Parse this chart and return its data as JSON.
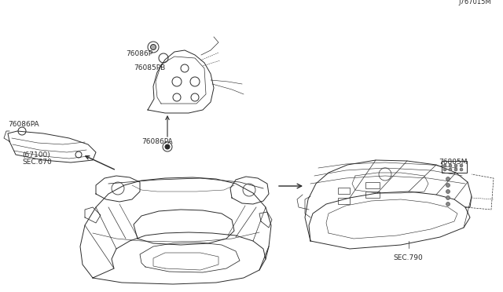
{
  "bg_color": "#ffffff",
  "line_color": "#2a2a2a",
  "lw": 0.7,
  "labels": {
    "sec670": "SEC.670\n(67100)",
    "76086PA_left": "76086PA",
    "76086PA_center": "76086PA",
    "76085PB": "76085PB",
    "76086P": "76086P",
    "sec790": "SEC.790",
    "76805M": "76805M",
    "diagram_num": "J767015M"
  }
}
